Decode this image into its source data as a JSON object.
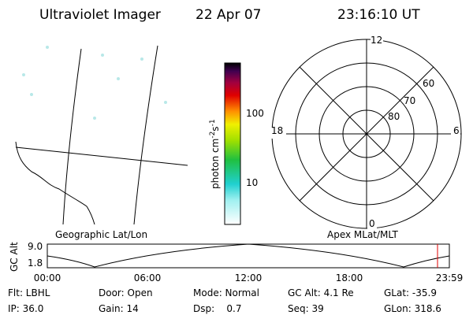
{
  "header": {
    "title": "Ultraviolet Imager",
    "date": "22 Apr 07",
    "time": "23:16:10 UT"
  },
  "image": {
    "label": "Geographic Lat/Lon"
  },
  "colorbar": {
    "label": "photon cm",
    "exp1": "-2",
    "unit2": "s",
    "exp2": "-1",
    "ticks": [
      "100",
      "10"
    ]
  },
  "polar": {
    "label": "Apex MLat/MLT",
    "mlt": [
      "12",
      "18",
      "6",
      "0"
    ],
    "mlat": [
      "60",
      "70",
      "80"
    ]
  },
  "timeline": {
    "axis_label": "GC Alt",
    "y_ticks": [
      "9.0",
      "1.8"
    ],
    "x_ticks": [
      "00:00",
      "06:00",
      "12:00",
      "18:00",
      "23:59"
    ]
  },
  "info": [
    [
      "Flt: LBHL",
      "Door: Open",
      "Mode: Normal",
      "GC Alt: 4.1 Re",
      "GLat: -35.9"
    ],
    [
      "IP: 36.0",
      "Gain: 14",
      "Dsp:    0.7",
      "Seq: 39",
      "GLon: 318.6"
    ]
  ]
}
